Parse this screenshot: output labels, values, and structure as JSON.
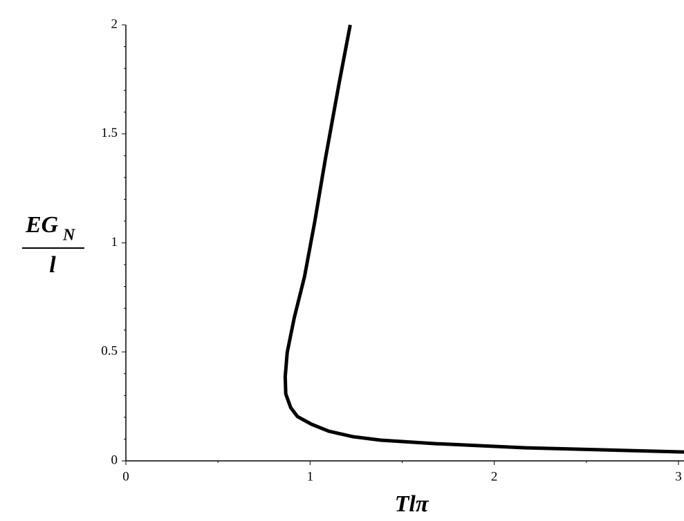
{
  "chart_data": {
    "type": "line",
    "xlabel": "Tlπ",
    "ylabel_numerator": "EG",
    "ylabel_subscript": "N",
    "ylabel_denominator": "l",
    "x": [
      1.218,
      1.158,
      1.083,
      1.026,
      0.97,
      0.914,
      0.876,
      0.865,
      0.868,
      0.895,
      0.932,
      1.008,
      1.102,
      1.233,
      1.383,
      1.684,
      2.173,
      3.03
    ],
    "series": [
      {
        "color": "#000000",
        "values": [
          2.0,
          1.734,
          1.385,
          1.1,
          0.846,
          0.656,
          0.498,
          0.387,
          0.307,
          0.244,
          0.203,
          0.168,
          0.136,
          0.111,
          0.095,
          0.079,
          0.06,
          0.041
        ]
      }
    ],
    "xlim": [
      0,
      3.03
    ],
    "ylim": [
      0,
      2
    ],
    "xticks": [
      0,
      1,
      2,
      3
    ],
    "yticks": [
      0,
      0.5,
      1,
      1.5,
      2
    ],
    "xminorticks": [
      0.5,
      1.5,
      2.5
    ],
    "yminorticks": [
      0.1,
      0.2,
      0.3,
      0.4,
      0.6,
      0.7,
      0.8,
      0.9,
      1.1,
      1.2,
      1.3,
      1.4,
      1.6,
      1.7,
      1.8,
      1.9
    ]
  }
}
